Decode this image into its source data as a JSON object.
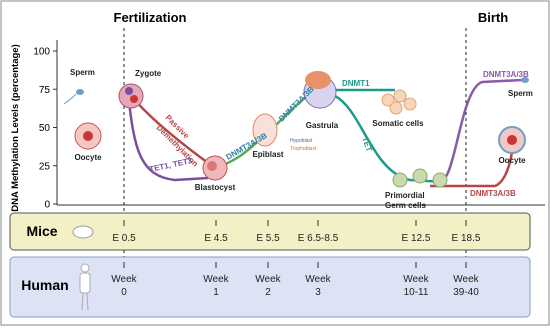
{
  "header": {
    "left": "Fertilization",
    "right": "Birth"
  },
  "axis": {
    "label": "DNA Methylation Levels (percentage)",
    "ticks": [
      0,
      25,
      50,
      75,
      100
    ]
  },
  "cells": {
    "sperm_left": "Sperm",
    "zygote": "Zygote",
    "oocyte_left": "Oocyte",
    "blastocyst": "Blastocyst",
    "epiblast": "Epiblast",
    "hypoblast": "Hypoblast",
    "trophoblast": "Trophoblast",
    "gastrula": "Gastrula",
    "somatic": "Somatic cells",
    "pgc": [
      "Primordial",
      "Germ cells"
    ],
    "sperm_right": "Sperm",
    "oocyte_right": "Oocyte"
  },
  "curve_labels": {
    "passive": [
      "Passive",
      "Demethylation"
    ],
    "tet13": "TET1, TET3",
    "dnmt_early": "DNMT3A/3B",
    "dnmt_epi": "DNMT3A/3B",
    "dnmt1": "DNMT1",
    "tet": "TET",
    "dnmt_sperm": "DNMT3A/3B",
    "dnmt_oocyte": "DNMT3A/3B"
  },
  "timeline": {
    "mice": {
      "label": "Mice",
      "stages": [
        "E 0.5",
        "E 4.5",
        "E 5.5",
        "E 6.5-8.5",
        "E 12.5",
        "E 18.5"
      ]
    },
    "human": {
      "label": "Human",
      "stages": [
        [
          "Week",
          "0"
        ],
        [
          "Week",
          "1"
        ],
        [
          "Week",
          "2"
        ],
        [
          "Week",
          "3"
        ],
        [
          "Week",
          "10-11"
        ],
        [
          "Week",
          "39-40"
        ]
      ]
    }
  }
}
